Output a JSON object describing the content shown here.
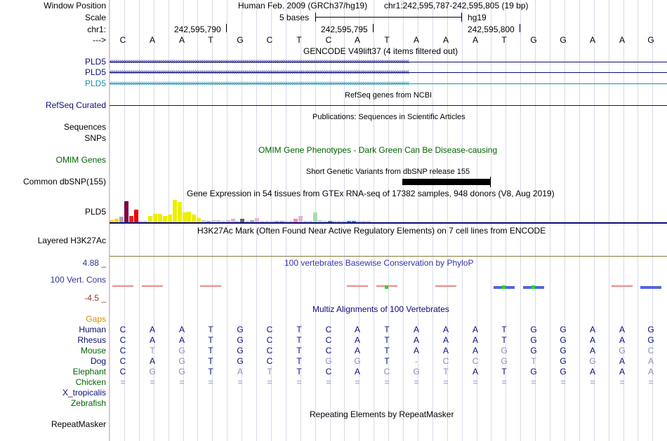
{
  "header": {
    "window_position_label": "Window Position",
    "scale_label": "Scale",
    "chrom_label": "chr1:",
    "strand_label": "--->",
    "assembly_text": "Human Feb. 2009 (GRCh37/hg19)",
    "position_text": "chr1:242,595,787-242,595,805 (19 bp)",
    "scale_text": "5 bases",
    "db_text": "hg19",
    "coord_ticks": [
      "242,595,790",
      "242,595,795",
      "242,595,800"
    ]
  },
  "sequence": [
    "C",
    "A",
    "A",
    "T",
    "G",
    "C",
    "T",
    "C",
    "A",
    "T",
    "A",
    "A",
    "A",
    "T",
    "G",
    "G",
    "A",
    "A",
    "G"
  ],
  "gencode": {
    "title": "GENCODE V49lift37 (4 items filtered out)",
    "items": [
      {
        "label": "PLD5",
        "color": "#0c0c78"
      },
      {
        "label": "PLD5",
        "color": "#0c0c78"
      },
      {
        "label": "PLD5",
        "color": "#1b8fb0"
      }
    ]
  },
  "refseq": {
    "title": "RefSeq genes from NCBI",
    "label": "RefSeq Curated",
    "color": "#0c0c78"
  },
  "publications": {
    "title": "Publications: Sequences in Scientific Articles",
    "labels": [
      "Sequences",
      "SNPs"
    ]
  },
  "omim": {
    "title": "OMIM Gene Phenotypes - Dark Green Can Be Disease-causing",
    "label": "OMIM Genes",
    "color": "#006400"
  },
  "dbsnp": {
    "title": "Short Genetic Variants from dbSNP release 155",
    "label": "Common dbSNP(155)"
  },
  "gtex": {
    "title": "Gene Expression in 54 tissues from GTEx RNA-seq of 17382 samples, 948 donors (V8, Aug 2019)",
    "label": "PLD5",
    "bars": [
      {
        "value": 0.1,
        "color": "#ffd700"
      },
      {
        "value": 0.15,
        "color": "#ffd700"
      },
      {
        "value": 0.25,
        "color": "#aaaaaa"
      },
      {
        "value": 1.0,
        "color": "#800040"
      },
      {
        "value": 0.3,
        "color": "#ee2222"
      },
      {
        "value": 0.6,
        "color": "#ee0000"
      },
      {
        "value": 0.05,
        "color": "#cccccc"
      },
      {
        "value": 0.05,
        "color": "#cccccc"
      },
      {
        "value": 0.3,
        "color": "#eeee00"
      },
      {
        "value": 0.4,
        "color": "#eeee00"
      },
      {
        "value": 0.4,
        "color": "#eeee00"
      },
      {
        "value": 0.3,
        "color": "#eeee00"
      },
      {
        "value": 0.35,
        "color": "#eeee00"
      },
      {
        "value": 1.05,
        "color": "#eeee00"
      },
      {
        "value": 0.95,
        "color": "#eeee00"
      },
      {
        "value": 0.45,
        "color": "#eeee00"
      },
      {
        "value": 0.5,
        "color": "#eeee00"
      },
      {
        "value": 0.35,
        "color": "#eeee00"
      },
      {
        "value": 0.2,
        "color": "#eeee00"
      },
      {
        "value": 0.1,
        "color": "#cccccc"
      },
      {
        "value": 0.05,
        "color": "#99bbcc"
      },
      {
        "value": 0.1,
        "color": "#cccccc"
      },
      {
        "value": 0.1,
        "color": "#cccccc"
      },
      {
        "value": 0.05,
        "color": "#cccccc"
      },
      {
        "value": 0.1,
        "color": "#ddbbcc"
      },
      {
        "value": 0.15,
        "color": "#ddbbcc"
      },
      {
        "value": 0.05,
        "color": "#cccccc"
      },
      {
        "value": 0.15,
        "color": "#666666"
      },
      {
        "value": 0.05,
        "color": "#cccccc"
      },
      {
        "value": 0.1,
        "color": "#aaaaaa"
      },
      {
        "value": 0.2,
        "color": "#ddbbcc"
      },
      {
        "value": 0.05,
        "color": "#cccccc"
      },
      {
        "value": 0.05,
        "color": "#cccccc"
      },
      {
        "value": 0.05,
        "color": "#cccccc"
      },
      {
        "value": 0.05,
        "color": "#aaaacc"
      },
      {
        "value": 0.05,
        "color": "#aaaacc"
      },
      {
        "value": 0.05,
        "color": "#cccccc"
      },
      {
        "value": 0.05,
        "color": "#cccccc"
      },
      {
        "value": 0.15,
        "color": "#ff88aa"
      },
      {
        "value": 0.3,
        "color": "#ddbbcc"
      },
      {
        "value": 0.05,
        "color": "#cccccc"
      },
      {
        "value": 0.05,
        "color": "#cccccc"
      },
      {
        "value": 0.45,
        "color": "#aaddaa"
      },
      {
        "value": 0.1,
        "color": "#cccccc"
      },
      {
        "value": 0.05,
        "color": "#cccccc"
      },
      {
        "value": 0.05,
        "color": "#33aa33"
      },
      {
        "value": 0.05,
        "color": "#cccccc"
      },
      {
        "value": 0.05,
        "color": "#cccccc"
      },
      {
        "value": 0.05,
        "color": "#cccccc"
      },
      {
        "value": 0.05,
        "color": "#3388cc"
      },
      {
        "value": 0.05,
        "color": "#3388cc"
      },
      {
        "value": 0.05,
        "color": "#cccccc"
      },
      {
        "value": 0.05,
        "color": "#cccccc"
      },
      {
        "value": 0.05,
        "color": "#cccccc"
      }
    ]
  },
  "h3k27ac": {
    "title": "H3K27Ac Mark (Often Found Near Active Regulatory Elements) on 7 cell lines from ENCODE",
    "label": "Layered H3K27Ac"
  },
  "phylop": {
    "title": "100 vertebrates Basewise Conservation by PhyloP",
    "label": "100 Vert. Cons",
    "ymax": "4.88 _",
    "ymin": "-4.5 _"
  },
  "multiz": {
    "title": "Multiz Alignments of 100 Vertebrates",
    "gaps_label": "Gaps",
    "species": [
      {
        "name": "Human",
        "seq": [
          "C",
          "A",
          "A",
          "T",
          "G",
          "C",
          "T",
          "C",
          "A",
          "T",
          "A",
          "A",
          "A",
          "T",
          "G",
          "G",
          "A",
          "A",
          "G"
        ],
        "diff": [
          0,
          0,
          0,
          0,
          0,
          0,
          0,
          0,
          0,
          0,
          0,
          0,
          0,
          0,
          0,
          0,
          0,
          0,
          0
        ]
      },
      {
        "name": "Rhesus",
        "seq": [
          "C",
          "A",
          "A",
          "T",
          "G",
          "C",
          "T",
          "C",
          "A",
          "T",
          "A",
          "A",
          "A",
          "T",
          "G",
          "G",
          "A",
          "A",
          "G"
        ],
        "diff": [
          0,
          0,
          0,
          0,
          0,
          0,
          0,
          0,
          0,
          0,
          0,
          0,
          0,
          0,
          0,
          0,
          0,
          0,
          0
        ]
      },
      {
        "name": "Mouse",
        "seq": [
          "C",
          "T",
          "G",
          "T",
          "G",
          "C",
          "T",
          "C",
          "A",
          "T",
          "A",
          "A",
          "A",
          "G",
          "G",
          "G",
          "A",
          "G",
          "C"
        ],
        "diff": [
          0,
          1,
          1,
          0,
          0,
          0,
          0,
          0,
          0,
          0,
          0,
          0,
          0,
          1,
          0,
          0,
          0,
          1,
          1
        ]
      },
      {
        "name": "Dog",
        "seq": [
          "C",
          "A",
          "G",
          "T",
          "G",
          "C",
          "T",
          "G",
          "G",
          "T",
          "-",
          "C",
          "C",
          "G",
          "T",
          "G",
          "G",
          "A",
          "A"
        ],
        "diff": [
          0,
          0,
          1,
          0,
          0,
          0,
          0,
          1,
          1,
          0,
          1,
          1,
          1,
          1,
          1,
          0,
          1,
          0,
          1
        ]
      },
      {
        "name": "Elephant",
        "seq": [
          "C",
          "G",
          "G",
          "T",
          "A",
          "T",
          "T",
          "C",
          "A",
          "C",
          "G",
          "T",
          "A",
          "T",
          "G",
          "G",
          "A",
          "A",
          "A"
        ],
        "diff": [
          0,
          1,
          1,
          0,
          1,
          1,
          0,
          0,
          0,
          1,
          1,
          1,
          0,
          0,
          0,
          0,
          0,
          0,
          1
        ]
      },
      {
        "name": "Chicken",
        "seq": [
          "=",
          "=",
          "=",
          "=",
          "=",
          "=",
          "=",
          "=",
          "=",
          "=",
          "=",
          "=",
          "=",
          "=",
          "=",
          "=",
          "=",
          "=",
          "="
        ],
        "diff": [
          1,
          1,
          1,
          1,
          1,
          1,
          1,
          1,
          1,
          1,
          1,
          1,
          1,
          1,
          1,
          1,
          1,
          1,
          1
        ]
      },
      {
        "name": "X_tropicalis",
        "seq": [],
        "diff": []
      },
      {
        "name": "Zebrafish",
        "seq": [],
        "diff": []
      }
    ]
  },
  "repeatmasker": {
    "title": "Repeating Elements by RepeatMasker",
    "label": "RepeatMasker"
  },
  "colors": {
    "label_blue": "#0c0c78",
    "green": "#006400",
    "orange": "#e08a00",
    "cons_blue": "#3333aa",
    "ymax_blue": "#333399",
    "ymin_brown": "#993322",
    "grid": "#d8dbe8"
  }
}
